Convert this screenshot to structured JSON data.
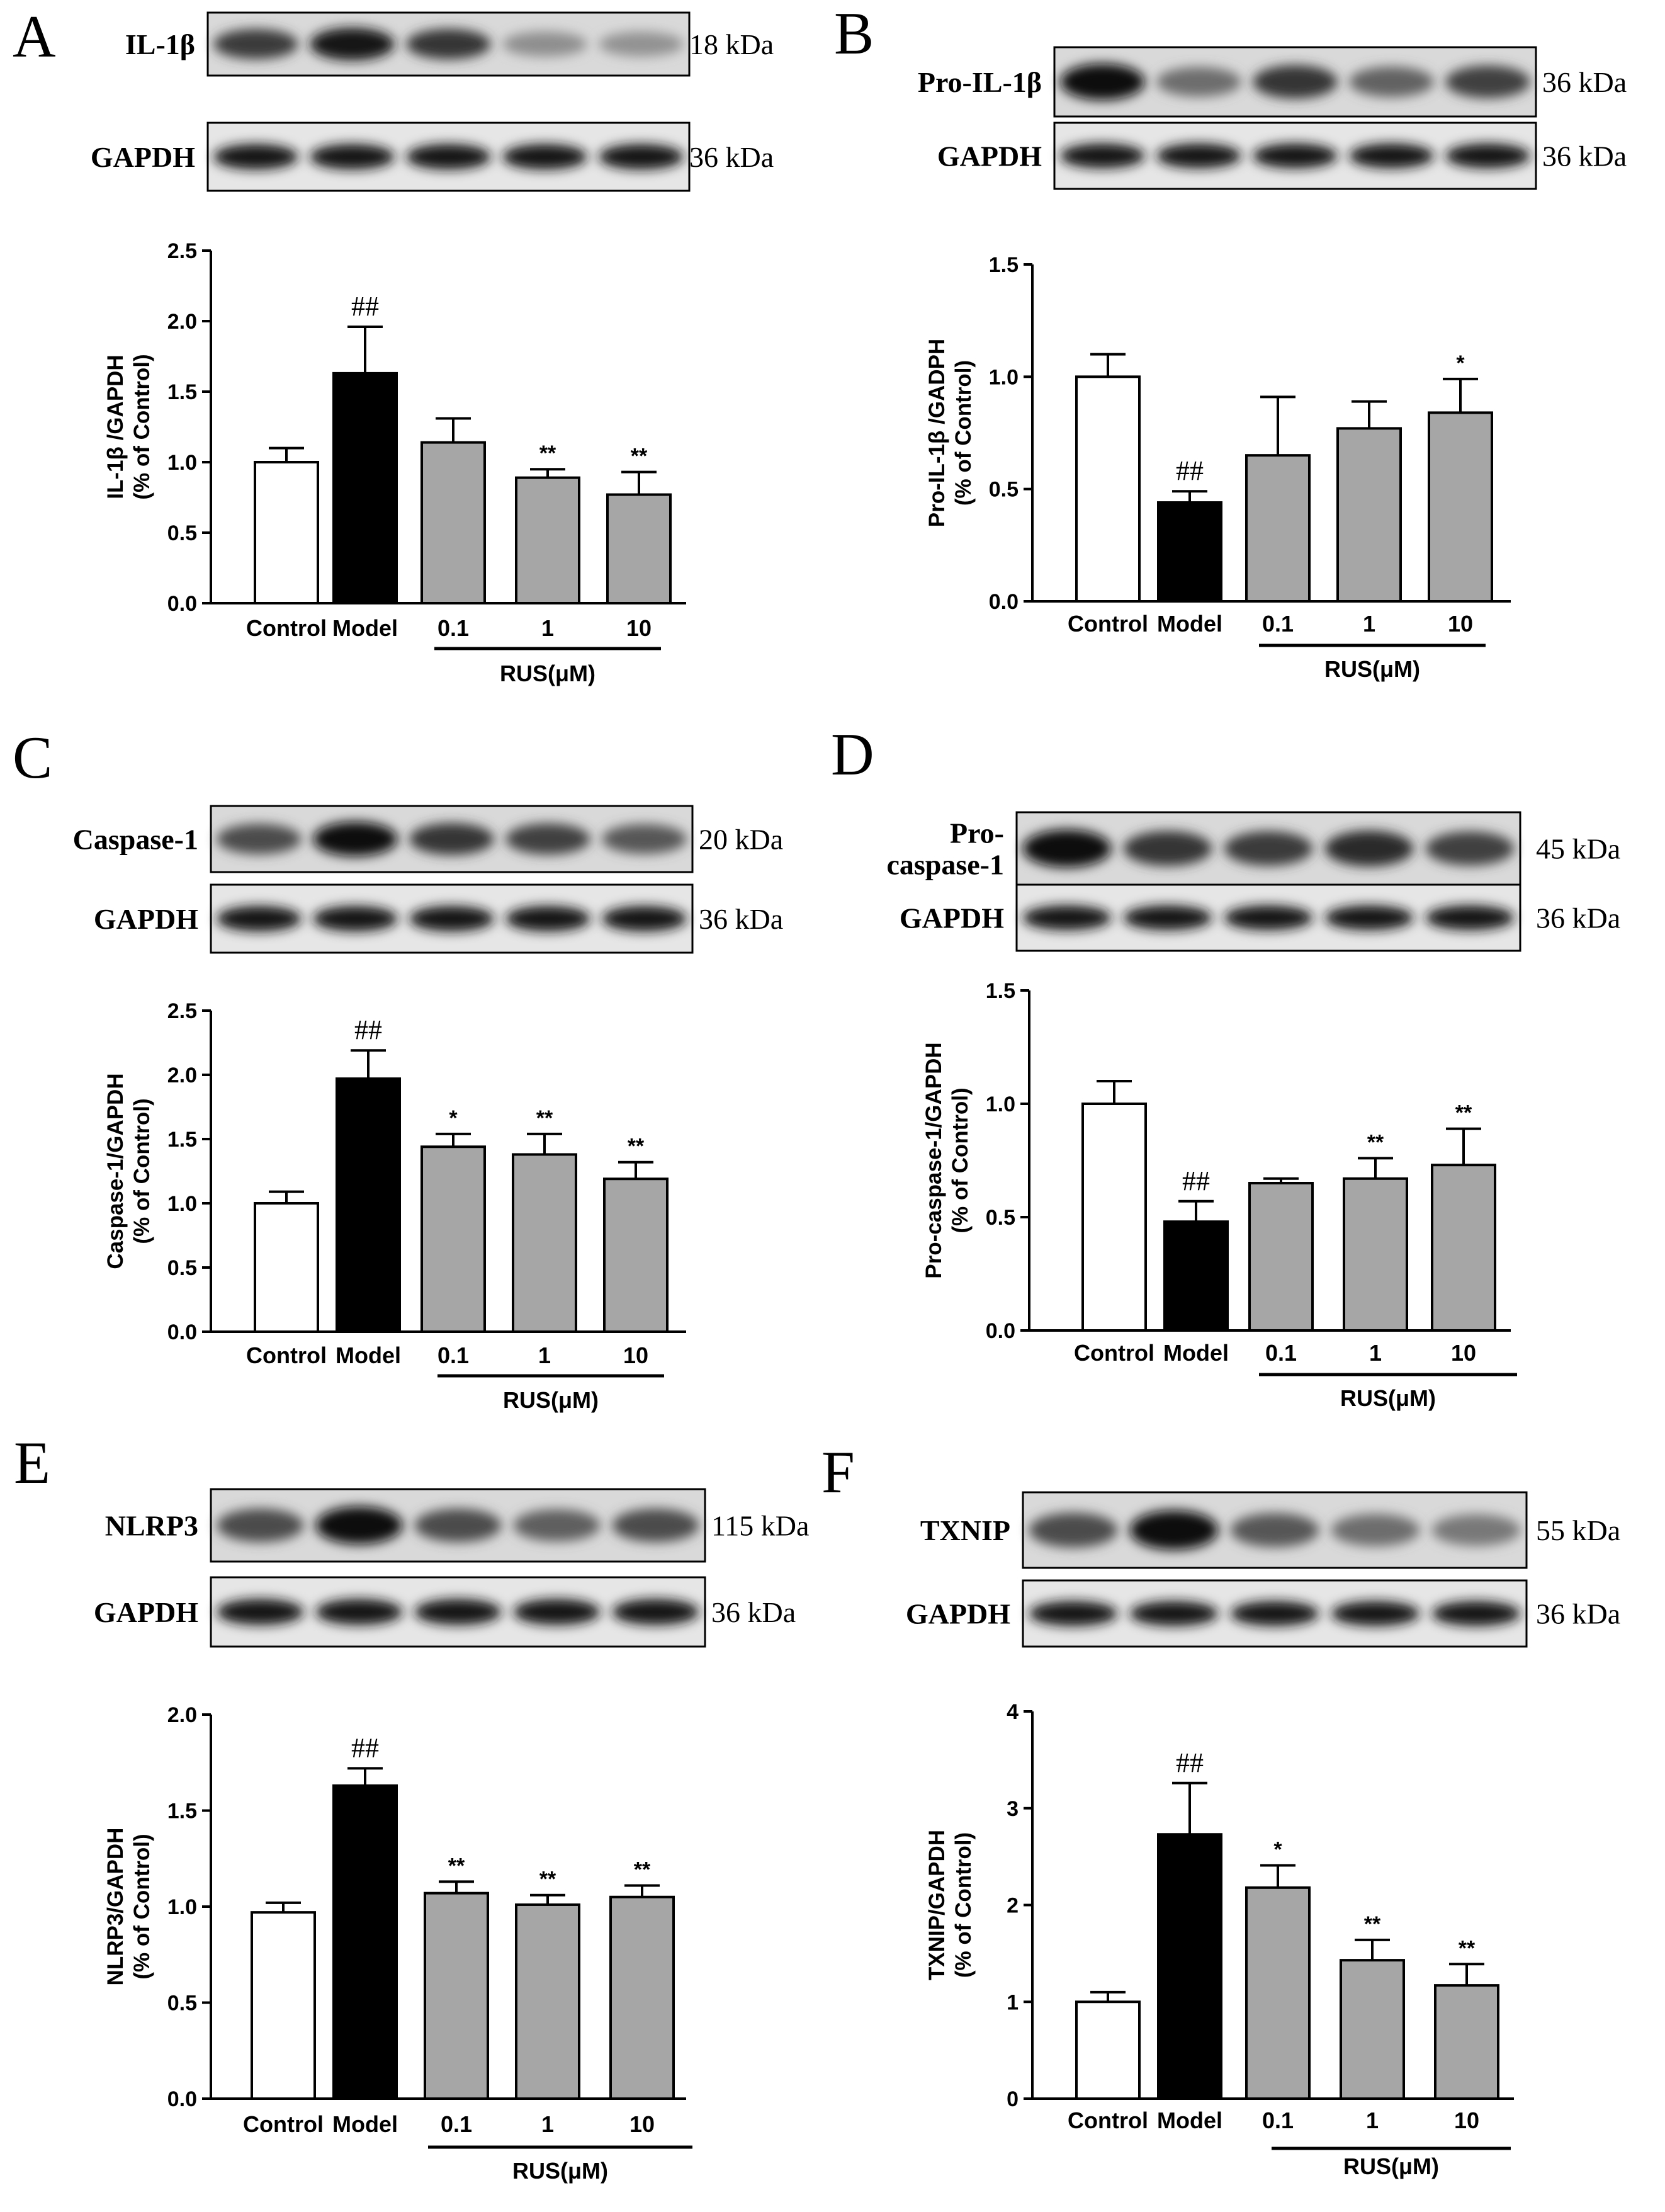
{
  "figure": {
    "colors": {
      "control_fill": "#ffffff",
      "model_fill": "#000000",
      "rus_fill": "#a6a6a6",
      "axis": "#000000"
    },
    "panels": [
      {
        "id": "A",
        "letter": "A",
        "blot_rows": [
          {
            "label_lines": [
              "IL-1β"
            ],
            "kda": "18 kDa",
            "band_intensity": [
              0.78,
              0.95,
              0.8,
              0.4,
              0.38
            ]
          },
          {
            "label_lines": [
              "GAPDH"
            ],
            "kda": "36 kDa",
            "band_intensity": [
              0.95,
              0.95,
              0.95,
              0.95,
              0.95
            ]
          }
        ],
        "chart_data": {
          "type": "bar",
          "categories": [
            "Control",
            "Model",
            "0.1",
            "1",
            "10"
          ],
          "values": [
            1.0,
            1.63,
            1.14,
            0.89,
            0.77
          ],
          "errors": [
            0.1,
            0.33,
            0.17,
            0.06,
            0.16
          ],
          "annotations": [
            "",
            "##",
            "",
            "**",
            "**"
          ],
          "ylabel": [
            "IL-1β /GAPDH",
            "(% of Control)"
          ],
          "ylim": [
            0,
            2.5
          ],
          "yticks": [
            "0.0",
            "0.5",
            "1.0",
            "1.5",
            "2.0",
            "2.5"
          ],
          "group_label": "RUS(μM)"
        }
      },
      {
        "id": "B",
        "letter": "B",
        "blot_rows": [
          {
            "label_lines": [
              "Pro-IL-1β"
            ],
            "kda": "36 kDa",
            "band_intensity": [
              1.0,
              0.55,
              0.8,
              0.6,
              0.75
            ]
          },
          {
            "label_lines": [
              "GAPDH"
            ],
            "kda": "36 kDa",
            "band_intensity": [
              0.95,
              0.95,
              0.95,
              0.95,
              0.95
            ]
          }
        ],
        "chart_data": {
          "type": "bar",
          "categories": [
            "Control",
            "Model",
            "0.1",
            "1",
            "10"
          ],
          "values": [
            1.0,
            0.44,
            0.65,
            0.77,
            0.84
          ],
          "errors": [
            0.1,
            0.05,
            0.26,
            0.12,
            0.15
          ],
          "annotations": [
            "",
            "##",
            "",
            "",
            "*"
          ],
          "ylabel": [
            "Pro-IL-1β /GADPH",
            "(% of Control)"
          ],
          "ylim": [
            0,
            1.5
          ],
          "yticks": [
            "0.0",
            "0.5",
            "1.0",
            "1.5"
          ],
          "group_label": "RUS(μM)"
        }
      },
      {
        "id": "C",
        "letter": "C",
        "blot_rows": [
          {
            "label_lines": [
              "Caspase-1"
            ],
            "kda": "20 kDa",
            "band_intensity": [
              0.7,
              0.98,
              0.8,
              0.75,
              0.65
            ]
          },
          {
            "label_lines": [
              "GAPDH"
            ],
            "kda": "36 kDa",
            "band_intensity": [
              0.95,
              0.95,
              0.95,
              0.95,
              0.95
            ]
          }
        ],
        "chart_data": {
          "type": "bar",
          "categories": [
            "Control",
            "Model",
            "0.1",
            "1",
            "10"
          ],
          "values": [
            1.0,
            1.97,
            1.44,
            1.38,
            1.19
          ],
          "errors": [
            0.09,
            0.22,
            0.1,
            0.16,
            0.13
          ],
          "annotations": [
            "",
            "##",
            "*",
            "**",
            "**"
          ],
          "ylabel": [
            "Caspase-1/GAPDH",
            "(% of Control)"
          ],
          "ylim": [
            0,
            2.5
          ],
          "yticks": [
            "0.0",
            "0.5",
            "1.0",
            "1.5",
            "2.0",
            "2.5"
          ],
          "group_label": "RUS(μM)"
        }
      },
      {
        "id": "D",
        "letter": "D",
        "blot_rows": [
          {
            "label_lines": [
              "Pro-",
              "caspase-1"
            ],
            "kda": "45 kDa",
            "band_intensity": [
              0.98,
              0.8,
              0.78,
              0.85,
              0.75
            ]
          },
          {
            "label_lines": [
              "GAPDH"
            ],
            "kda": "36 kDa",
            "band_intensity": [
              0.95,
              0.95,
              0.95,
              0.95,
              0.95
            ]
          }
        ],
        "chart_data": {
          "type": "bar",
          "categories": [
            "Control",
            "Model",
            "0.1",
            "1",
            "10"
          ],
          "values": [
            1.0,
            0.48,
            0.65,
            0.67,
            0.73
          ],
          "errors": [
            0.1,
            0.09,
            0.02,
            0.09,
            0.16
          ],
          "annotations": [
            "",
            "##",
            "",
            "**",
            "**"
          ],
          "ylabel": [
            "Pro-caspase-1/GAPDH",
            "(% of Control)"
          ],
          "ylim": [
            0,
            1.5
          ],
          "yticks": [
            "0.0",
            "0.5",
            "1.0",
            "1.5"
          ],
          "group_label": "RUS(μM)"
        }
      },
      {
        "id": "E",
        "letter": "E",
        "blot_rows": [
          {
            "label_lines": [
              "NLRP3"
            ],
            "kda": "115 kDa",
            "band_intensity": [
              0.7,
              0.98,
              0.7,
              0.62,
              0.7
            ]
          },
          {
            "label_lines": [
              "GAPDH"
            ],
            "kda": "36 kDa",
            "band_intensity": [
              0.95,
              0.95,
              0.95,
              0.95,
              0.95
            ]
          }
        ],
        "chart_data": {
          "type": "bar",
          "categories": [
            "Control",
            "Model",
            "0.1",
            "1",
            "10"
          ],
          "values": [
            0.97,
            1.63,
            1.07,
            1.01,
            1.05
          ],
          "errors": [
            0.05,
            0.09,
            0.06,
            0.05,
            0.06
          ],
          "annotations": [
            "",
            "##",
            "**",
            "**",
            "**"
          ],
          "ylabel": [
            "NLRP3/GAPDH",
            "(% of Control)"
          ],
          "ylim": [
            0,
            2.0
          ],
          "yticks": [
            "0.0",
            "0.5",
            "1.0",
            "1.5",
            "2.0"
          ],
          "group_label": "RUS(μM)"
        }
      },
      {
        "id": "F",
        "letter": "F",
        "blot_rows": [
          {
            "label_lines": [
              "TXNIP"
            ],
            "kda": "55 kDa",
            "band_intensity": [
              0.7,
              0.98,
              0.65,
              0.55,
              0.5
            ]
          },
          {
            "label_lines": [
              "GAPDH"
            ],
            "kda": "36 kDa",
            "band_intensity": [
              0.95,
              0.95,
              0.95,
              0.95,
              0.95
            ]
          }
        ],
        "chart_data": {
          "type": "bar",
          "categories": [
            "Control",
            "Model",
            "0.1",
            "1",
            "10"
          ],
          "values": [
            1.0,
            2.73,
            2.18,
            1.43,
            1.17
          ],
          "errors": [
            0.1,
            0.53,
            0.23,
            0.21,
            0.22
          ],
          "annotations": [
            "",
            "##",
            "*",
            "**",
            "**"
          ],
          "ylabel": [
            "TXNIP/GAPDH",
            "(% of Control)"
          ],
          "ylim": [
            0,
            4
          ],
          "yticks": [
            "0",
            "1",
            "2",
            "3",
            "4"
          ],
          "group_label": "RUS(μM)"
        }
      }
    ]
  }
}
